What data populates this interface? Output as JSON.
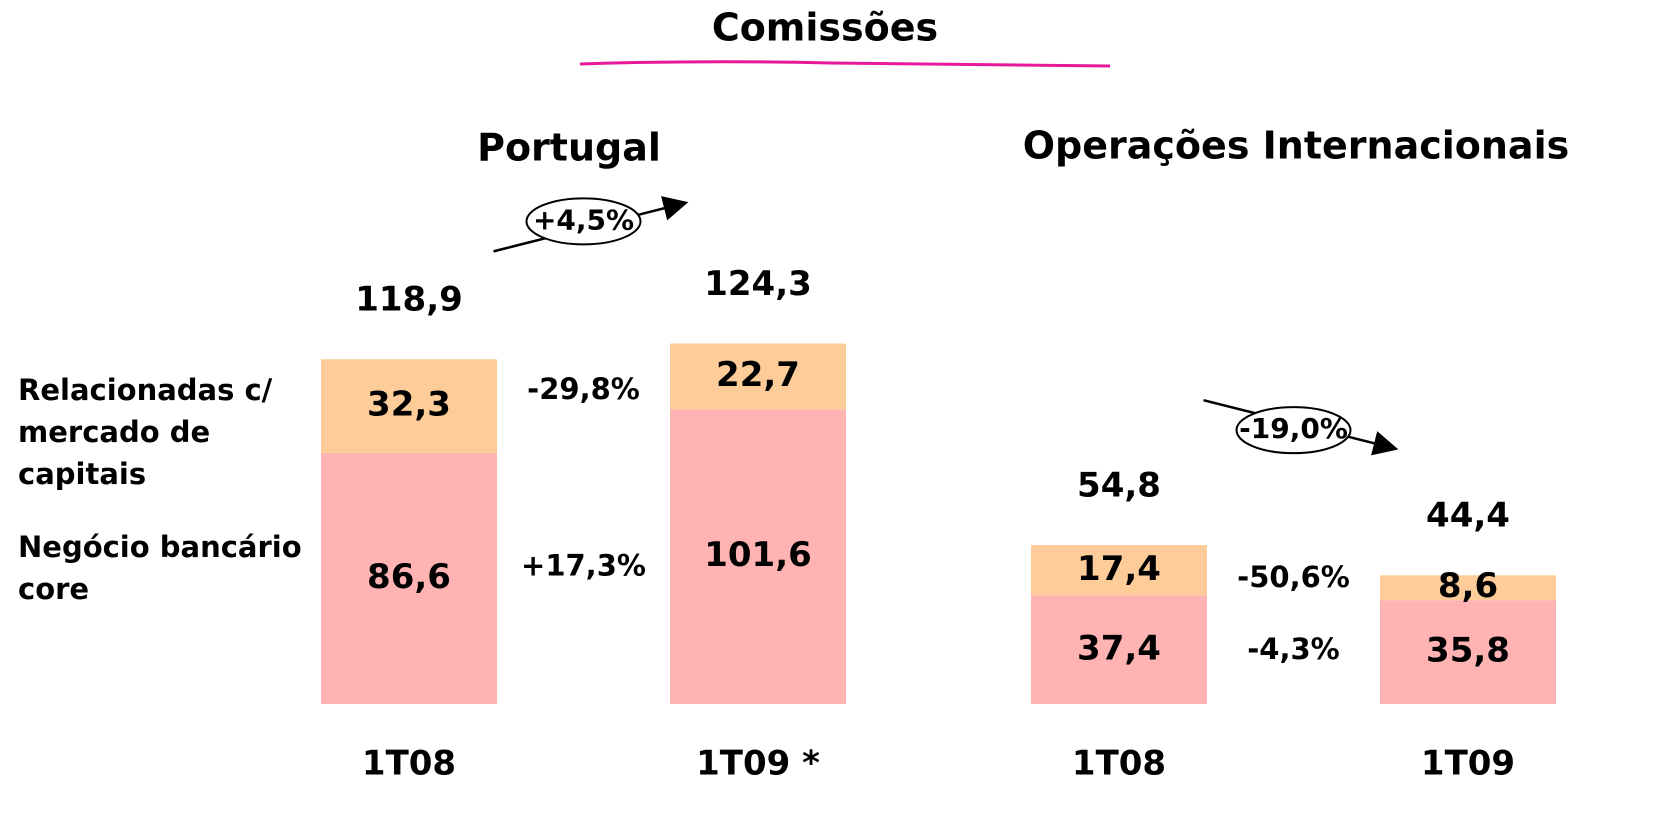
{
  "title": "Comissões",
  "chart_data": [
    {
      "type": "bar",
      "stacked": true,
      "title": "Portugal",
      "categories": [
        "1T08",
        "1T09 *"
      ],
      "ylim": [
        0,
        130
      ],
      "series": [
        {
          "name": "Negócio bancário core",
          "color": "#ffb3b3",
          "values": [
            86.6,
            101.6
          ],
          "value_labels": [
            "86,6",
            "101,6"
          ],
          "change": "+17,3%",
          "change_color": "#138a13"
        },
        {
          "name": "Relacionadas c/ mercado de capitais",
          "color": "#fdcc99",
          "values": [
            32.3,
            22.7
          ],
          "value_labels": [
            "32,3",
            "22,7"
          ],
          "change": "-29,8%",
          "change_color": "#f0141c"
        }
      ],
      "totals": [
        118.9,
        124.3
      ],
      "total_labels": [
        "118,9",
        "124,3"
      ],
      "total_change": "+4,5%",
      "total_change_color": "#138a13"
    },
    {
      "type": "bar",
      "stacked": true,
      "title": "Operações Internacionais",
      "categories": [
        "1T08",
        "1T09"
      ],
      "ylim": [
        0,
        130
      ],
      "series": [
        {
          "color": "#ffb3b3",
          "values": [
            37.4,
            35.8
          ],
          "value_labels": [
            "37,4",
            "35,8"
          ],
          "change": "-4,3%",
          "change_color": "#f0141c"
        },
        {
          "color": "#fdcc99",
          "values": [
            17.4,
            8.6
          ],
          "value_labels": [
            "17,4",
            "8,6"
          ],
          "change": "-50,6%",
          "change_color": "#f0141c"
        }
      ],
      "totals": [
        54.8,
        44.4
      ],
      "total_labels": [
        "54,8",
        "44,4"
      ],
      "total_change": "-19,0%",
      "total_change_color": "#f0141c"
    }
  ]
}
